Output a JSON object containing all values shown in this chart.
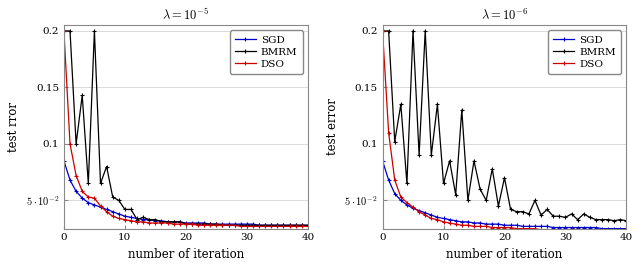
{
  "title1": "$\\lambda = 10^{-5}$",
  "title2": "$\\lambda = 10^{-6}$",
  "xlabel": "number of iteration",
  "ylabel1": "test rror",
  "ylabel2": "test error",
  "xlim": [
    0,
    40
  ],
  "ylim": [
    0.025,
    0.205
  ],
  "yticks": [
    0.05,
    0.1,
    0.15,
    0.2
  ],
  "ytick_labels": [
    "$5 \\cdot 10^{-2}$",
    "0.1",
    "0.15",
    "0.2"
  ],
  "xticks": [
    0,
    10,
    20,
    30,
    40
  ],
  "legend_labels": [
    "SGD",
    "BMRM",
    "DSO"
  ],
  "sgd_color": "#0000cc",
  "bmrm_color": "#000000",
  "dso_color": "#cc0000",
  "bg_color": "#ffffff",
  "grid_color": "#cccccc",
  "plot1_sgd": [
    0.085,
    0.068,
    0.058,
    0.052,
    0.048,
    0.046,
    0.044,
    0.042,
    0.04,
    0.038,
    0.036,
    0.035,
    0.034,
    0.033,
    0.033,
    0.032,
    0.032,
    0.031,
    0.031,
    0.031,
    0.03,
    0.03,
    0.03,
    0.03,
    0.029,
    0.029,
    0.029,
    0.029,
    0.029,
    0.029,
    0.029,
    0.029,
    0.028,
    0.028,
    0.028,
    0.028,
    0.028,
    0.028,
    0.028,
    0.028,
    0.028
  ],
  "plot1_dso": [
    0.2,
    0.1,
    0.072,
    0.058,
    0.053,
    0.052,
    0.045,
    0.04,
    0.036,
    0.034,
    0.033,
    0.032,
    0.031,
    0.031,
    0.03,
    0.03,
    0.03,
    0.03,
    0.029,
    0.029,
    0.029,
    0.029,
    0.028,
    0.028,
    0.028,
    0.028,
    0.028,
    0.028,
    0.028,
    0.027,
    0.027,
    0.027,
    0.027,
    0.027,
    0.027,
    0.027,
    0.027,
    0.027,
    0.027,
    0.027,
    0.027
  ],
  "plot1_bmrm": [
    0.2,
    0.2,
    0.1,
    0.143,
    0.065,
    0.2,
    0.065,
    0.08,
    0.053,
    0.05,
    0.042,
    0.042,
    0.033,
    0.035,
    0.033,
    0.033,
    0.031,
    0.031,
    0.031,
    0.031,
    0.029,
    0.029,
    0.029,
    0.029,
    0.029,
    0.029,
    0.028,
    0.028,
    0.028,
    0.028,
    0.028,
    0.028,
    0.028,
    0.028,
    0.028,
    0.028,
    0.028,
    0.028,
    0.028,
    0.028,
    0.028
  ],
  "plot2_sgd": [
    0.085,
    0.068,
    0.056,
    0.05,
    0.046,
    0.043,
    0.041,
    0.039,
    0.037,
    0.035,
    0.034,
    0.033,
    0.032,
    0.031,
    0.031,
    0.03,
    0.03,
    0.029,
    0.029,
    0.029,
    0.028,
    0.028,
    0.028,
    0.027,
    0.027,
    0.027,
    0.027,
    0.027,
    0.026,
    0.026,
    0.026,
    0.026,
    0.026,
    0.026,
    0.026,
    0.026,
    0.025,
    0.025,
    0.025,
    0.025,
    0.025
  ],
  "plot2_dso": [
    0.2,
    0.11,
    0.068,
    0.053,
    0.048,
    0.044,
    0.04,
    0.037,
    0.034,
    0.033,
    0.031,
    0.03,
    0.029,
    0.028,
    0.028,
    0.027,
    0.027,
    0.027,
    0.026,
    0.026,
    0.026,
    0.026,
    0.025,
    0.025,
    0.025,
    0.025,
    0.024,
    0.024,
    0.024,
    0.024,
    0.024,
    0.024,
    0.024,
    0.023,
    0.023,
    0.023,
    0.023,
    0.023,
    0.023,
    0.023,
    0.023
  ],
  "plot2_bmrm": [
    0.2,
    0.2,
    0.102,
    0.135,
    0.065,
    0.2,
    0.09,
    0.2,
    0.09,
    0.135,
    0.065,
    0.085,
    0.055,
    0.13,
    0.05,
    0.085,
    0.06,
    0.05,
    0.078,
    0.045,
    0.07,
    0.042,
    0.04,
    0.04,
    0.038,
    0.05,
    0.037,
    0.042,
    0.036,
    0.036,
    0.035,
    0.038,
    0.033,
    0.038,
    0.035,
    0.033,
    0.033,
    0.033,
    0.032,
    0.033,
    0.032
  ]
}
